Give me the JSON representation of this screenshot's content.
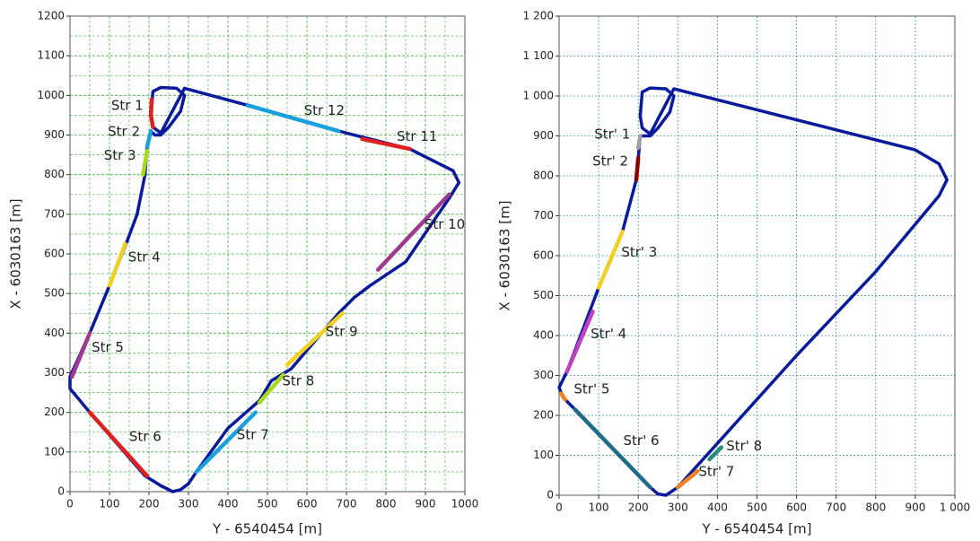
{
  "chart_data": [
    {
      "type": "line",
      "xlabel": "Y - 6540454 [m]",
      "ylabel": "X - 6030163 [m]",
      "xlim": [
        0,
        1000
      ],
      "ylim": [
        0,
        1200
      ],
      "xticks": [
        0,
        100,
        200,
        300,
        400,
        500,
        600,
        700,
        800,
        900,
        1000
      ],
      "yticks": [
        0,
        100,
        200,
        300,
        400,
        500,
        600,
        700,
        800,
        900,
        1000,
        1100,
        1200
      ],
      "grid": true,
      "minor_grid": true,
      "grid_color": "#3cb43c",
      "grid_dash": "3,2",
      "series": [
        {
          "color": "#0a1a9c",
          "x": [
            260,
            230,
            190,
            50,
            0,
            0,
            50,
            100,
            140,
            170,
            190,
            195,
            205,
            215,
            230,
            250,
            280,
            290,
            270,
            230,
            210,
            205,
            210,
            230,
            290,
            450,
            700,
            860,
            930,
            970,
            985,
            960,
            850,
            760,
            720,
            680,
            560,
            510,
            480,
            400,
            320,
            300,
            280,
            260
          ],
          "y": [
            0,
            15,
            40,
            200,
            260,
            290,
            400,
            520,
            620,
            700,
            800,
            870,
            910,
            900,
            900,
            920,
            960,
            1000,
            1018,
            1020,
            1010,
            950,
            920,
            905,
            1018,
            975,
            905,
            865,
            830,
            810,
            780,
            740,
            580,
            520,
            490,
            450,
            310,
            280,
            230,
            160,
            50,
            20,
            5,
            0
          ]
        },
        {
          "name": "Str 1",
          "color": "#e02020",
          "x": [
            210,
            205,
            207
          ],
          "y": [
            920,
            950,
            990
          ]
        },
        {
          "name": "Str 2",
          "color": "#1aa0dc",
          "x": [
            195,
            205
          ],
          "y": [
            870,
            910
          ]
        },
        {
          "name": "Str 3",
          "color": "#a8d820",
          "x": [
            185,
            195
          ],
          "y": [
            800,
            860
          ]
        },
        {
          "name": "Str 4",
          "color": "#f0d020",
          "x": [
            100,
            140
          ],
          "y": [
            520,
            625
          ]
        },
        {
          "name": "Str 5",
          "color": "#9b3a8f",
          "x": [
            5,
            50
          ],
          "y": [
            290,
            400
          ]
        },
        {
          "name": "Str 6",
          "color": "#e02020",
          "x": [
            50,
            195
          ],
          "y": [
            200,
            40
          ]
        },
        {
          "name": "Str 7",
          "color": "#1aa0dc",
          "x": [
            320,
            470
          ],
          "y": [
            50,
            200
          ]
        },
        {
          "name": "Str 8",
          "color": "#a8d820",
          "x": [
            480,
            540
          ],
          "y": [
            225,
            295
          ]
        },
        {
          "name": "Str 9",
          "color": "#f0d020",
          "x": [
            550,
            690
          ],
          "y": [
            320,
            450
          ]
        },
        {
          "name": "Str 10",
          "color": "#9b3a8f",
          "x": [
            780,
            960
          ],
          "y": [
            560,
            750
          ]
        },
        {
          "name": "Str 11",
          "color": "#e02020",
          "x": [
            740,
            860
          ],
          "y": [
            890,
            865
          ]
        },
        {
          "name": "Str 12",
          "color": "#1aa0dc",
          "x": [
            450,
            680
          ],
          "y": [
            975,
            910
          ]
        }
      ]
    },
    {
      "type": "line",
      "xlabel": "Y - 6540454 [m]",
      "ylabel": "X - 6030163 [m]",
      "xlim": [
        0,
        1000
      ],
      "ylim": [
        0,
        1200
      ],
      "xticks": [
        0,
        100,
        200,
        300,
        400,
        500,
        600,
        700,
        800,
        900,
        {
          "value": 1000,
          "label": "1 000"
        }
      ],
      "yticks": [
        0,
        100,
        200,
        300,
        400,
        500,
        600,
        700,
        800,
        900,
        {
          "value": 1000,
          "label": "1 000"
        },
        {
          "value": 1100,
          "label": "1 100"
        },
        {
          "value": 1200,
          "label": "1 200"
        }
      ],
      "grid": true,
      "minor_grid": false,
      "grid_color": "#3a9aa0",
      "grid_dash": "2,2",
      "series": [
        {
          "color": "#0a1a9c",
          "x": [
            300,
            270,
            250,
            230,
            40,
            10,
            0,
            20,
            100,
            160,
            195,
            205,
            215,
            230,
            250,
            280,
            290,
            270,
            230,
            210,
            205,
            210,
            230,
            290,
            900,
            960,
            980,
            960,
            800,
            600,
            500,
            400,
            300
          ],
          "y": [
            20,
            0,
            3,
            20,
            215,
            245,
            270,
            310,
            520,
            660,
            790,
            900,
            900,
            900,
            920,
            960,
            1000,
            1018,
            1020,
            1010,
            950,
            920,
            905,
            1018,
            865,
            830,
            790,
            750,
            560,
            350,
            240,
            130,
            20
          ]
        },
        {
          "name": "Str' 1",
          "color": "#a0a0a0",
          "x": [
            200,
            205
          ],
          "y": [
            870,
            900
          ]
        },
        {
          "name": "Str' 2",
          "color": "#8b0000",
          "x": [
            195,
            200
          ],
          "y": [
            790,
            845
          ]
        },
        {
          "name": "Str' 3",
          "color": "#f0d020",
          "x": [
            100,
            160
          ],
          "y": [
            520,
            660
          ]
        },
        {
          "name": "Str' 4",
          "color": "#c040c0",
          "x": [
            20,
            85
          ],
          "y": [
            310,
            460
          ]
        },
        {
          "name": "Str' 5",
          "color": "#f08020",
          "x": [
            5,
            15
          ],
          "y": [
            255,
            240
          ]
        },
        {
          "name": "Str' 6",
          "color": "#206b8a",
          "x": [
            40,
            230
          ],
          "y": [
            215,
            20
          ]
        },
        {
          "name": "Str' 7",
          "color": "#f08020",
          "x": [
            300,
            350
          ],
          "y": [
            20,
            60
          ]
        },
        {
          "name": "Str' 8",
          "color": "#2a8a7a",
          "x": [
            380,
            410
          ],
          "y": [
            90,
            120
          ]
        }
      ]
    }
  ]
}
